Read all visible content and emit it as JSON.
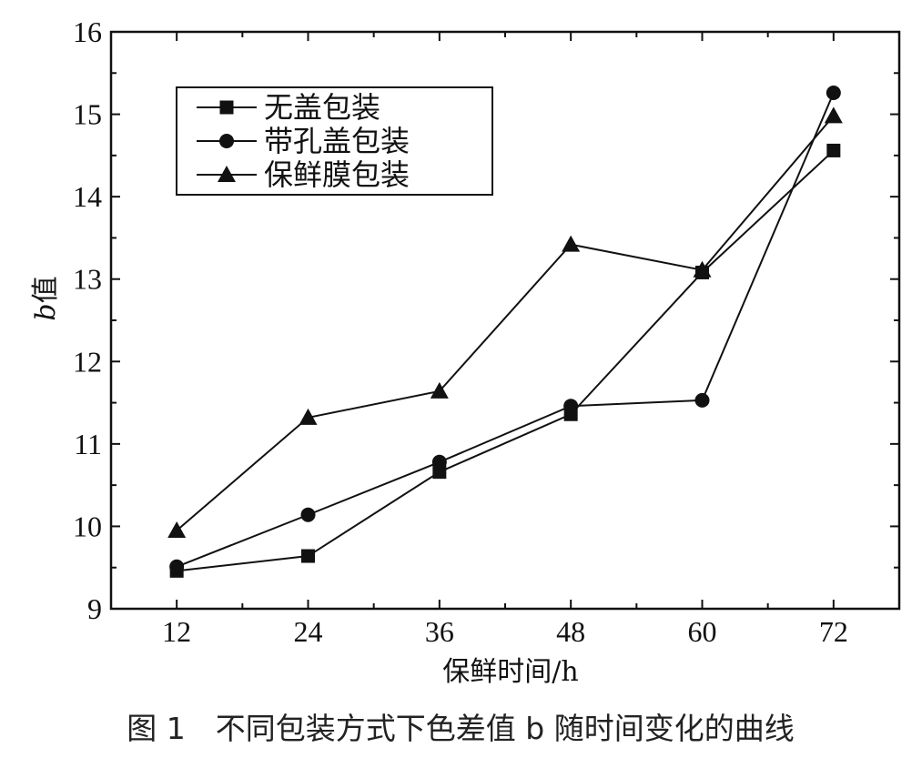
{
  "chart_data": {
    "type": "line",
    "caption": "图 1　不同包装方式下色差值 b 随时间变化的曲线",
    "xlabel": "保鲜时间/h",
    "ylabel": "b值",
    "ylabel_italic": "b",
    "ylabel_rest": "值",
    "x": [
      12,
      24,
      36,
      48,
      60,
      72
    ],
    "xticks": [
      "12",
      "24",
      "36",
      "48",
      "60",
      "72"
    ],
    "xlim": [
      6,
      78
    ],
    "ylim": [
      9,
      16
    ],
    "yticks": [
      "9",
      "10",
      "11",
      "12",
      "13",
      "14",
      "15",
      "16"
    ],
    "grid": false,
    "legend_position": "top-left",
    "series": [
      {
        "name": "无盖包装",
        "marker": "square",
        "values": [
          9.46,
          9.64,
          10.66,
          11.36,
          13.08,
          14.56
        ]
      },
      {
        "name": "带孔盖包装",
        "marker": "circle",
        "values": [
          9.51,
          10.14,
          10.78,
          11.46,
          11.53,
          15.26
        ]
      },
      {
        "name": "保鲜膜包装",
        "marker": "triangle",
        "values": [
          9.95,
          11.32,
          11.64,
          13.42,
          13.11,
          14.98
        ]
      }
    ]
  }
}
